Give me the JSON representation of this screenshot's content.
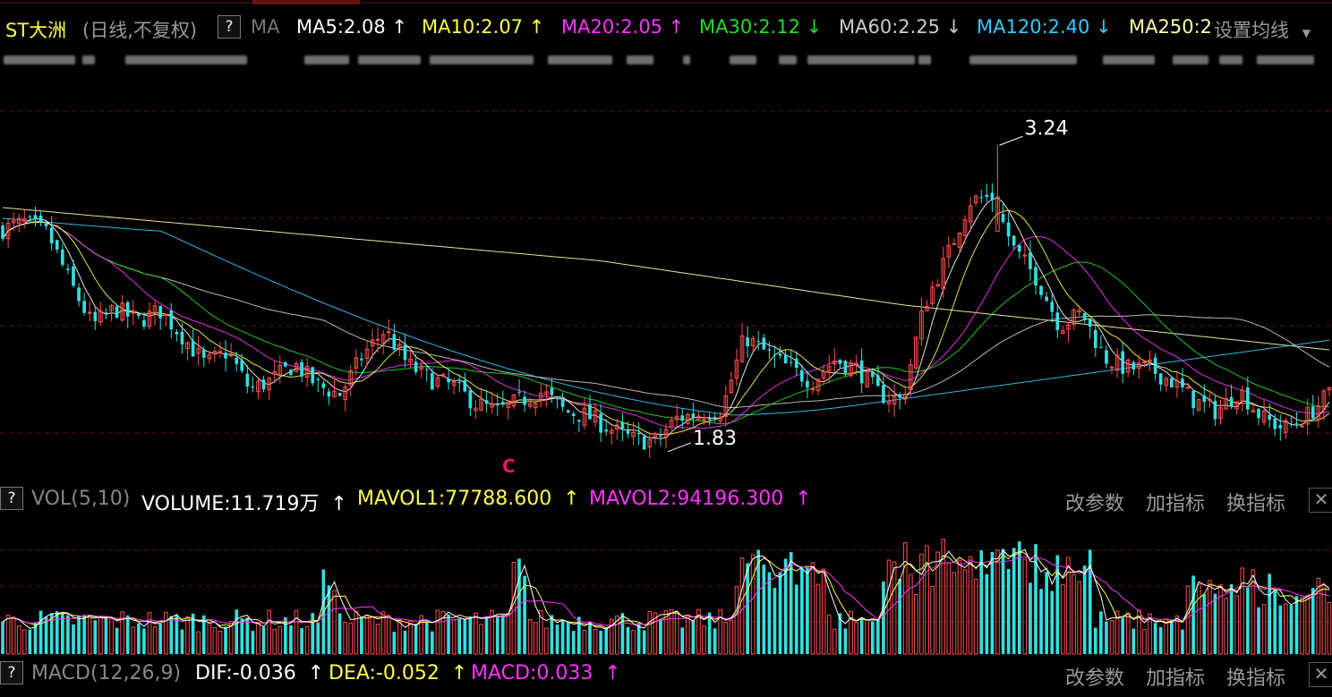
{
  "header": {
    "stock_name": "ST大洲",
    "period_label": "(日线,不复权)",
    "help_label": "?",
    "ma_label": "MA",
    "ma_items": [
      {
        "text": "MA5:2.08",
        "arrow": "↑",
        "color": "#ffffff"
      },
      {
        "text": "MA10:2.07",
        "arrow": "↑",
        "color": "#ffff4d"
      },
      {
        "text": "MA20:2.05",
        "arrow": "↑",
        "color": "#ff33ff"
      },
      {
        "text": "MA30:2.12",
        "arrow": "↓",
        "color": "#22dd22"
      },
      {
        "text": "MA60:2.25",
        "arrow": "↓",
        "color": "#cccccc"
      },
      {
        "text": "MA120:2.40",
        "arrow": "↓",
        "color": "#33ccff"
      },
      {
        "text": "MA250:2",
        "arrow": "",
        "color": "#ffffaa"
      }
    ],
    "settings_label": "设置均线"
  },
  "price_annotations": {
    "high_label": "3.24",
    "low_label": "1.83",
    "marker_label": "C"
  },
  "volume_panel": {
    "help_label": "?",
    "name_label": "VOL(5,10)",
    "volume_text": "VOLUME:11.719万",
    "mavol1_text": "MAVOL1:77788.600",
    "mavol2_text": "MAVOL2:94196.300",
    "arrow": "↑"
  },
  "macd_panel": {
    "help_label": "?",
    "name_label": "MACD(12,26,9)",
    "dif_text": "DIF:-0.036",
    "dea_text": "DEA:-0.052",
    "macd_text": "MACD:0.033",
    "arrow": "↑"
  },
  "controls": {
    "change_params": "改参数",
    "add_indicator": "加指标",
    "switch_indicator": "换指标",
    "close": "✕"
  },
  "colors": {
    "up": "#ff4d4d",
    "down": "#33e0e0",
    "ma5": "#ffffff",
    "ma10": "#ffff4d",
    "ma20": "#ff33ff",
    "ma30": "#22dd22",
    "ma60": "#cccccc",
    "ma120": "#33ccff",
    "ma250": "#ffffaa",
    "grid": "#5a0f0f"
  },
  "chart_data": {
    "type": "candlestick",
    "title": "ST大洲 (日线,不复权)",
    "high_annotation": 3.24,
    "low_annotation": 1.83,
    "y_range_estimate": [
      1.75,
      3.5
    ],
    "last_values": {
      "MA5": 2.08,
      "MA10": 2.07,
      "MA20": 2.05,
      "MA30": 2.12,
      "MA60": 2.25,
      "MA120": 2.4
    },
    "price_path_estimate": [
      2.85,
      2.88,
      2.83,
      2.6,
      2.4,
      2.48,
      2.42,
      2.47,
      2.35,
      2.22,
      2.28,
      2.1,
      2.15,
      2.22,
      2.12,
      2.08,
      2.26,
      2.38,
      2.22,
      2.15,
      2.12,
      2.04,
      2.0,
      2.05,
      2.09,
      2.0,
      1.98,
      1.92,
      1.87,
      1.86,
      1.97,
      1.99,
      2.01,
      2.35,
      2.27,
      2.2,
      2.14,
      2.24,
      2.2,
      2.08,
      2.05,
      2.5,
      2.72,
      2.98,
      3.0,
      2.75,
      2.62,
      2.4,
      2.46,
      2.25,
      2.2,
      2.2,
      2.14,
      2.05,
      2.0,
      2.1,
      1.97,
      1.92,
      1.98,
      2.08
    ],
    "volume": {
      "last_volume": "11.719万",
      "MAVOL1": 77788.6,
      "MAVOL2": 94196.3
    },
    "macd": {
      "DIF": -0.036,
      "DEA": -0.052,
      "MACD": 0.033
    }
  }
}
